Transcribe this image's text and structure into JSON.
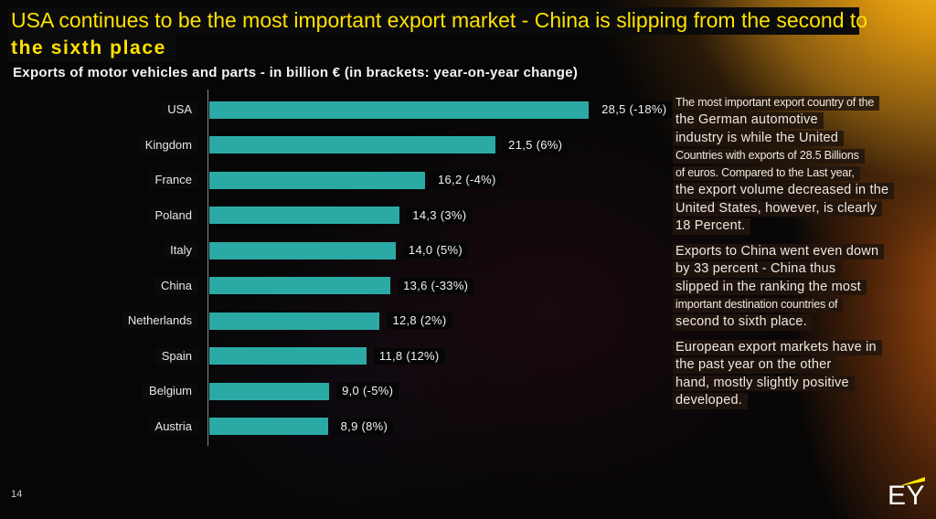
{
  "slide": {
    "title_line1": "USA continues to be the most important export market - China is slipping from the second to",
    "title_line2": "the sixth place",
    "subtitle": "Exports of motor vehicles and parts - in billion € (in brackets: year-on-year change)",
    "page_number": "14",
    "logo_text": "EY",
    "accent_yellow": "#ffe600",
    "bar_color": "#2baaa5"
  },
  "chart_data": {
    "type": "bar",
    "orientation": "horizontal",
    "title": "Exports of motor vehicles and parts - in billion € (in brackets: year-on-year change)",
    "categories": [
      "USA",
      "Kingdom",
      "France",
      "Poland",
      "Italy",
      "China",
      "Netherlands",
      "Spain",
      "Belgium",
      "Austria"
    ],
    "values": [
      28.5,
      21.5,
      16.2,
      14.3,
      14.0,
      13.6,
      12.8,
      11.8,
      9.0,
      8.9
    ],
    "value_labels": [
      "28,5 (-18%)",
      "21,5 (6%)",
      "16,2 (-4%)",
      "14,3 (3%)",
      "14,0 (5%)",
      "13,6 (-33%)",
      "12,8 (2%)",
      "11,8 (12%)",
      "9,0 (-5%)",
      "8,9 (8%)"
    ],
    "changes": [
      "-18%",
      "6%",
      "-4%",
      "3%",
      "5%",
      "-33%",
      "2%",
      "12%",
      "-5%",
      "8%"
    ],
    "xlabel": "",
    "ylabel": "",
    "xlim": [
      0,
      30
    ],
    "grid": false,
    "legend": false,
    "bar_color": "#2baaa5"
  },
  "panel": {
    "paragraphs": [
      {
        "lines": [
          {
            "text": "The most important export country of the",
            "size": "small"
          },
          {
            "text": "the German automotive",
            "size": "large"
          },
          {
            "text": "industry is while the United",
            "size": "large"
          },
          {
            "text": "Countries with exports of 28.5 Billions",
            "size": "small"
          },
          {
            "text": "of euros. Compared to the Last year,",
            "size": "small"
          },
          {
            "text": "the export volume decreased in the",
            "size": "large"
          },
          {
            "text": "United States, however, is clearly",
            "size": "large"
          },
          {
            "text": "18 Percent.",
            "size": "large"
          }
        ]
      },
      {
        "lines": [
          {
            "text": "Exports to China went even down",
            "size": "large"
          },
          {
            "text": "by 33 percent - China thus",
            "size": "large"
          },
          {
            "text": "slipped in the ranking the most",
            "size": "large"
          },
          {
            "text": "important destination countries of",
            "size": "small"
          },
          {
            "text": "second to sixth place.",
            "size": "large"
          }
        ]
      },
      {
        "lines": [
          {
            "text": "European export markets have in",
            "size": "large"
          },
          {
            "text": "the past year on the other",
            "size": "large"
          },
          {
            "text": "hand, mostly slightly positive",
            "size": "large"
          },
          {
            "text": "developed.",
            "size": "large"
          }
        ]
      }
    ]
  }
}
